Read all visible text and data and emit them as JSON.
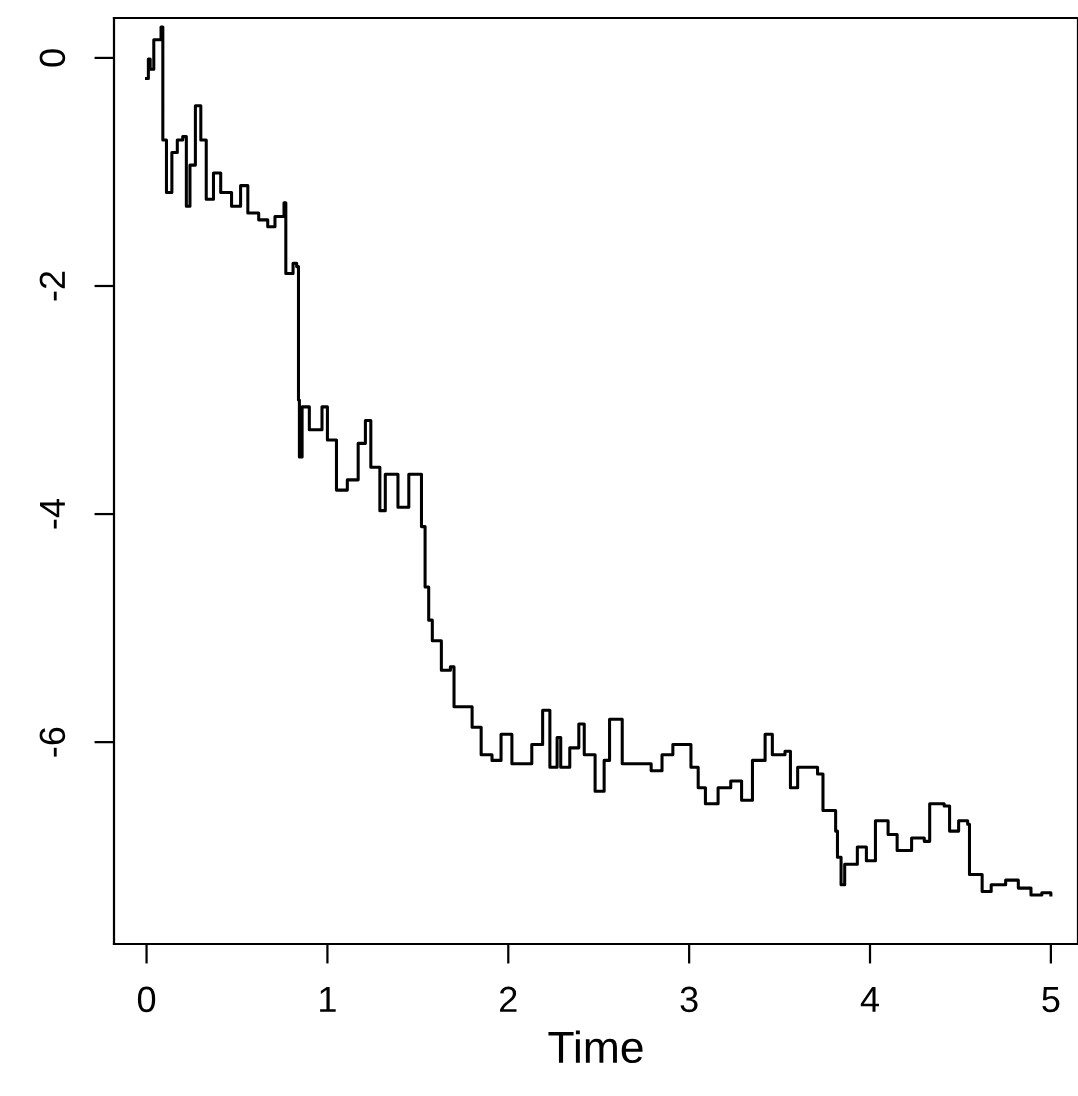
{
  "chart_data": {
    "type": "step",
    "xlabel": "Time",
    "xlim": [
      -0.18,
      5.15
    ],
    "ylim": [
      -7.77,
      0.35
    ],
    "xticks": [
      0,
      1,
      2,
      3,
      4,
      5
    ],
    "yticks": [
      0,
      -2,
      -4,
      -6
    ],
    "grid": false,
    "legend": false,
    "marker": "none",
    "line_style": "solid",
    "series": [
      {
        "color": "#000000",
        "x": [
          0,
          0.01,
          0.02,
          0.04,
          0.08,
          0.09,
          0.11,
          0.14,
          0.17,
          0.2,
          0.22,
          0.24,
          0.27,
          0.3,
          0.33,
          0.37,
          0.41,
          0.47,
          0.52,
          0.56,
          0.62,
          0.67,
          0.71,
          0.76,
          0.77,
          0.81,
          0.83,
          0.84,
          0.845,
          0.86,
          0.9,
          0.97,
          1.0,
          1.05,
          1.11,
          1.17,
          1.21,
          1.24,
          1.29,
          1.32,
          1.39,
          1.45,
          1.5,
          1.52,
          1.54,
          1.56,
          1.58,
          1.63,
          1.68,
          1.7,
          1.76,
          1.8,
          1.85,
          1.91,
          1.96,
          2.02,
          2.13,
          2.19,
          2.23,
          2.27,
          2.29,
          2.34,
          2.39,
          2.42,
          2.48,
          2.53,
          2.56,
          2.63,
          2.72,
          2.79,
          2.85,
          2.91,
          3.01,
          3.05,
          3.09,
          3.16,
          3.23,
          3.29,
          3.35,
          3.42,
          3.46,
          3.53,
          3.56,
          3.6,
          3.68,
          3.71,
          3.74,
          3.81,
          3.82,
          3.84,
          3.86,
          3.93,
          3.98,
          4.03,
          4.1,
          4.15,
          4.23,
          4.3,
          4.33,
          4.41,
          4.44,
          4.49,
          4.54,
          4.55,
          4.62,
          4.67,
          4.75,
          4.82,
          4.89,
          4.95,
          5.0
        ],
        "values": [
          -0.18,
          -0.01,
          -0.1,
          0.16,
          0.27,
          -0.72,
          -1.18,
          -0.83,
          -0.72,
          -0.69,
          -1.3,
          -0.94,
          -0.42,
          -0.72,
          -1.24,
          -1.01,
          -1.18,
          -1.3,
          -1.12,
          -1.36,
          -1.42,
          -1.48,
          -1.39,
          -1.27,
          -1.89,
          -1.8,
          -1.83,
          -3.0,
          -3.5,
          -3.06,
          -3.26,
          -3.06,
          -3.35,
          -3.79,
          -3.7,
          -3.38,
          -3.18,
          -3.59,
          -3.97,
          -3.65,
          -3.94,
          -3.65,
          -3.65,
          -4.11,
          -4.64,
          -4.93,
          -5.11,
          -5.37,
          -5.34,
          -5.69,
          -5.69,
          -5.87,
          -6.11,
          -6.16,
          -5.93,
          -6.19,
          -6.02,
          -5.72,
          -6.22,
          -5.96,
          -6.22,
          -6.05,
          -5.84,
          -6.11,
          -6.43,
          -6.16,
          -5.8,
          -6.19,
          -6.19,
          -6.25,
          -6.11,
          -6.02,
          -6.22,
          -6.4,
          -6.54,
          -6.4,
          -6.34,
          -6.51,
          -6.16,
          -5.93,
          -6.11,
          -6.08,
          -6.4,
          -6.22,
          -6.22,
          -6.28,
          -6.6,
          -6.78,
          -7.01,
          -7.25,
          -7.07,
          -6.92,
          -7.04,
          -6.69,
          -6.81,
          -6.95,
          -6.84,
          -6.87,
          -6.54,
          -6.56,
          -6.78,
          -6.69,
          -6.72,
          -7.16,
          -7.31,
          -7.25,
          -7.21,
          -7.28,
          -7.34,
          -7.32,
          -7.34
        ]
      }
    ]
  }
}
